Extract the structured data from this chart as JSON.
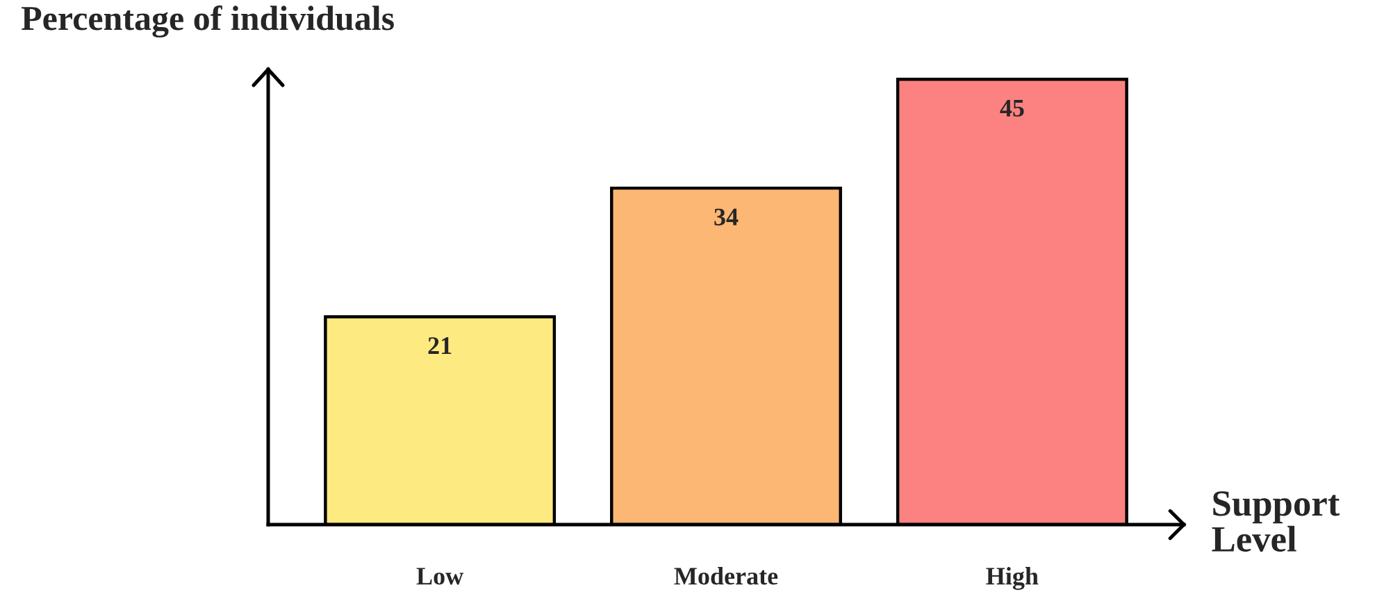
{
  "chart_data": {
    "type": "bar",
    "xlabel": "Support\nLevel",
    "ylabel": "Percentage of individuals",
    "categories": [
      "Low",
      "Moderate",
      "High"
    ],
    "values": [
      21,
      34,
      45
    ],
    "colors": [
      "#fdea80",
      "#fcb774",
      "#fc8282"
    ],
    "ylim": [
      0,
      46
    ],
    "data_labels": true,
    "grid": false,
    "legend": false
  }
}
